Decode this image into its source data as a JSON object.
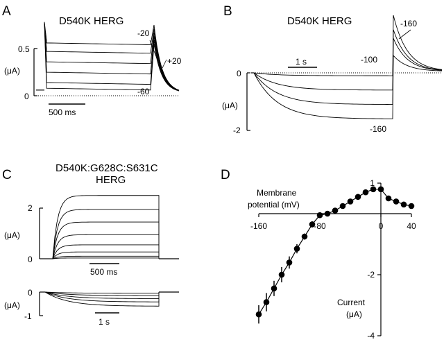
{
  "panels": {
    "A": {
      "label": "A",
      "title": "D540K HERG",
      "y_ticks": [
        "0.5",
        "0"
      ],
      "y_unit": "(μA)",
      "scalebar": "500 ms",
      "annotations": [
        "-20",
        "+20",
        "-60"
      ]
    },
    "B": {
      "label": "B",
      "title": "D540K HERG",
      "y_ticks": [
        "0",
        "-2"
      ],
      "y_unit": "(μA)",
      "scalebar": "1 s",
      "annotations": [
        "-160",
        "-100",
        "-160"
      ]
    },
    "C": {
      "label": "C",
      "title_line1": "D540K:G628C:S631C",
      "title_line2": "HERG",
      "top_y_ticks": [
        "2",
        "0"
      ],
      "top_y_unit": "(μA)",
      "top_scalebar": "500 ms",
      "bottom_y_ticks": [
        "0",
        "-1"
      ],
      "bottom_y_unit": "(μA)",
      "bottom_scalebar": "1 s"
    },
    "D": {
      "label": "D",
      "x_label_line1": "Membrane",
      "x_label_line2": "potential (mV)",
      "y_label_line1": "Current",
      "y_label_line2": "(μA)"
    }
  },
  "chart_data": [
    {
      "panel": "A",
      "type": "line",
      "description_of_axes": "current traces vs time",
      "y_unit": "μA",
      "ylim": [
        0,
        0.5
      ],
      "scalebar_ms": 500,
      "steady_state_levels": [
        0.56,
        0.47,
        0.36,
        0.25,
        0.14,
        0.08
      ],
      "tail_peak": 0.75
    },
    {
      "panel": "B",
      "type": "line",
      "y_unit": "μA",
      "ylim": [
        -2,
        0
      ],
      "scalebar_s": 1,
      "steady_state_levels": [
        -0.1,
        -0.6,
        -1.1,
        -1.6
      ],
      "tail_peaks": [
        2.0,
        1.5,
        1.2,
        0.6
      ]
    },
    {
      "panel": "C-top",
      "type": "line",
      "y_unit": "μA",
      "ylim": [
        0,
        2
      ],
      "scalebar_ms": 500,
      "steady_state_levels": [
        2.5,
        1.95,
        1.45,
        0.95,
        0.55,
        0.27,
        0.1,
        0.03
      ]
    },
    {
      "panel": "C-bottom",
      "type": "line",
      "y_unit": "μA",
      "ylim": [
        -1,
        0
      ],
      "scalebar_s": 1,
      "steady_state_levels": [
        -0.05,
        -0.15,
        -0.28,
        -0.42,
        -0.6
      ]
    },
    {
      "panel": "D",
      "type": "scatter",
      "xlabel": "Membrane potential (mV)",
      "ylabel": "Current (μA)",
      "xlim": [
        -160,
        40
      ],
      "ylim": [
        -4,
        1
      ],
      "x_ticks": [
        -160,
        -80,
        0,
        40
      ],
      "y_ticks": [
        1,
        -2,
        -4
      ],
      "series": [
        {
          "x": [
            -160,
            -150,
            -140,
            -130,
            -120,
            -110,
            -100,
            -90,
            -80,
            -70,
            -60,
            -50,
            -40,
            -30,
            -20,
            -10,
            0,
            10,
            20,
            30,
            40
          ],
          "y": [
            -3.3,
            -2.9,
            -2.45,
            -2.0,
            -1.6,
            -1.15,
            -0.75,
            -0.35,
            -0.05,
            0.0,
            0.1,
            0.25,
            0.4,
            0.55,
            0.7,
            0.8,
            0.8,
            0.5,
            0.4,
            0.3,
            0.25
          ],
          "err": [
            0.3,
            0.3,
            0.25,
            0.25,
            0.2,
            0.15,
            0.1,
            0.1,
            0.05,
            0.05,
            0.05,
            0.05,
            0.05,
            0.05,
            0.05,
            0.05,
            0.05,
            0.05,
            0.05,
            0.05,
            0.05
          ]
        }
      ]
    }
  ]
}
